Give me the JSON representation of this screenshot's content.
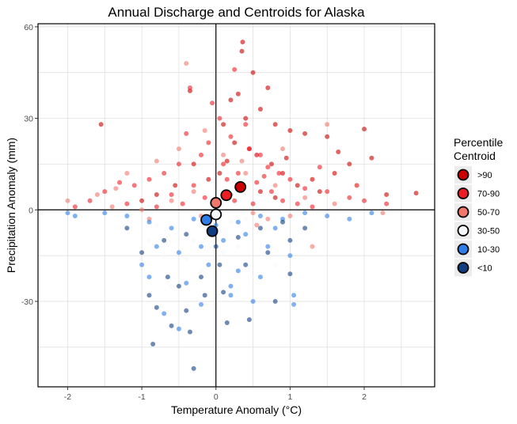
{
  "chart_data": {
    "type": "scatter",
    "title": "Annual Discharge and Centroids for Alaska",
    "xlabel": "Temperature Anomaly (°C)",
    "ylabel": "Precipitation Anomaly (mm)",
    "xlim": [
      -2.4,
      2.95
    ],
    "ylim": [
      -58,
      61
    ],
    "x_ticks": [
      -2,
      -1,
      0,
      1,
      2
    ],
    "y_ticks": [
      -30,
      0,
      30,
      60
    ],
    "grid": true,
    "reference_lines": {
      "x": 0,
      "y": 0
    },
    "legend": {
      "title": [
        "Percentile",
        "Centroid"
      ],
      "placement": "right",
      "items": [
        {
          "label": ">90",
          "color": "#cc0000"
        },
        {
          "label": "70-90",
          "color": "#ee1c25"
        },
        {
          "label": "50-70",
          "color": "#f2766c"
        },
        {
          "label": "30-50",
          "color": "#f5f8fa"
        },
        {
          "label": "10-30",
          "color": "#2e7de8"
        },
        {
          "label": "<10",
          "color": "#0f3d80"
        }
      ]
    },
    "series": [
      {
        "name": ">90",
        "color": "#cc0000",
        "centroid": [
          0.33,
          7.5
        ],
        "points": [
          [
            0.36,
            55
          ],
          [
            0.35,
            52
          ],
          [
            0.5,
            45
          ],
          [
            0.3,
            38
          ],
          [
            0.2,
            36
          ],
          [
            0.7,
            40
          ],
          [
            0.1,
            28
          ],
          [
            0.4,
            30
          ],
          [
            0.6,
            33
          ],
          [
            0.8,
            28
          ],
          [
            1.0,
            26
          ],
          [
            1.2,
            25
          ],
          [
            1.5,
            24
          ],
          [
            2.0,
            26.5
          ],
          [
            2.1,
            17
          ],
          [
            1.8,
            15
          ],
          [
            1.6,
            12
          ],
          [
            1.3,
            10
          ],
          [
            1.1,
            8
          ],
          [
            0.9,
            12
          ],
          [
            0.75,
            15
          ],
          [
            0.55,
            18
          ],
          [
            0.45,
            20
          ],
          [
            0.25,
            22
          ],
          [
            0.15,
            16
          ],
          [
            0.05,
            12
          ],
          [
            -0.1,
            10
          ],
          [
            -0.3,
            15
          ],
          [
            -0.55,
            8
          ],
          [
            -0.8,
            5
          ],
          [
            -1.0,
            3
          ],
          [
            0.6,
            6
          ],
          [
            0.8,
            4
          ],
          [
            1.4,
            6
          ],
          [
            1.9,
            8
          ],
          [
            2.3,
            5
          ],
          [
            2.7,
            5.5
          ],
          [
            -1.55,
            28
          ],
          [
            -0.35,
            39
          ],
          [
            0.95,
            17
          ],
          [
            1.65,
            19
          ]
        ]
      },
      {
        "name": "70-90",
        "color": "#ee1c25",
        "centroid": [
          0.14,
          4.8
        ],
        "points": [
          [
            -0.35,
            40
          ],
          [
            -0.4,
            25
          ],
          [
            0.05,
            30
          ],
          [
            0.2,
            24
          ],
          [
            0.4,
            28
          ],
          [
            0.45,
            20
          ],
          [
            0.6,
            18
          ],
          [
            0.7,
            14
          ],
          [
            0.85,
            12
          ],
          [
            1.0,
            10
          ],
          [
            1.2,
            7
          ],
          [
            1.5,
            6
          ],
          [
            1.8,
            4
          ],
          [
            2.0,
            3
          ],
          [
            2.3,
            2
          ],
          [
            -0.1,
            22
          ],
          [
            -0.2,
            18
          ],
          [
            -0.5,
            15
          ],
          [
            -0.7,
            12
          ],
          [
            -0.9,
            10
          ],
          [
            -1.1,
            8
          ],
          [
            -1.3,
            9
          ],
          [
            -1.5,
            6
          ],
          [
            -1.7,
            3
          ],
          [
            -1.9,
            1
          ],
          [
            -0.6,
            5
          ],
          [
            -0.3,
            8
          ],
          [
            0.1,
            15
          ],
          [
            0.3,
            12
          ],
          [
            0.55,
            9
          ],
          [
            0.75,
            6
          ],
          [
            0.9,
            3
          ],
          [
            1.1,
            2
          ],
          [
            1.3,
            1
          ],
          [
            -0.15,
            4
          ],
          [
            -0.45,
            2
          ],
          [
            0.25,
            3
          ],
          [
            0.5,
            2
          ],
          [
            -0.8,
            1
          ],
          [
            -1.2,
            2
          ],
          [
            0.15,
            10
          ],
          [
            0.65,
            11
          ],
          [
            -0.05,
            35
          ],
          [
            0.25,
            46
          ],
          [
            1.4,
            14
          ]
        ]
      },
      {
        "name": "50-70",
        "color": "#f2766c",
        "centroid": [
          0.0,
          2.3
        ],
        "points": [
          [
            -0.4,
            48
          ],
          [
            -0.15,
            26
          ],
          [
            0.1,
            18
          ],
          [
            -0.5,
            20
          ],
          [
            -0.8,
            16
          ],
          [
            -1.2,
            12
          ],
          [
            -1.6,
            5
          ],
          [
            -2.0,
            3
          ],
          [
            -1.4,
            1
          ],
          [
            0.4,
            12
          ],
          [
            0.8,
            8
          ],
          [
            1.2,
            4
          ],
          [
            1.6,
            2
          ],
          [
            1.9,
            8
          ],
          [
            2.25,
            -1
          ],
          [
            -0.3,
            6
          ],
          [
            -0.6,
            3
          ],
          [
            0.2,
            5
          ],
          [
            0.5,
            -1
          ],
          [
            0.7,
            -3
          ],
          [
            1.0,
            -2
          ],
          [
            -1.0,
            0
          ],
          [
            -0.2,
            -2
          ],
          [
            1.5,
            28
          ],
          [
            -0.9,
            -3
          ],
          [
            0.35,
            16
          ],
          [
            0.9,
            20
          ],
          [
            -1.35,
            7
          ],
          [
            0.55,
            -5
          ],
          [
            1.3,
            -12
          ]
        ]
      },
      {
        "name": "30-50",
        "color": "#f5f8fa",
        "centroid": [
          0.0,
          -1.5
        ],
        "points": [
          [
            -0.8,
            -5
          ],
          [
            -0.5,
            -8
          ],
          [
            -0.3,
            -10
          ],
          [
            0.0,
            -6
          ],
          [
            0.2,
            -4
          ],
          [
            0.4,
            -3
          ],
          [
            0.6,
            -7
          ],
          [
            0.9,
            -5
          ],
          [
            1.2,
            -3
          ],
          [
            -1.2,
            -3
          ],
          [
            -0.7,
            -15
          ],
          [
            -0.4,
            -16
          ],
          [
            0.1,
            -14
          ],
          [
            0.3,
            -12
          ],
          [
            -0.2,
            -20
          ],
          [
            0.5,
            -22
          ],
          [
            -0.6,
            -25
          ],
          [
            1.0,
            -10
          ],
          [
            0.8,
            -18
          ],
          [
            -0.9,
            -10
          ]
        ]
      },
      {
        "name": "10-30",
        "color": "#2e7de8",
        "centroid": [
          -0.13,
          -3.3
        ],
        "points": [
          [
            -1.5,
            -1
          ],
          [
            -1.2,
            -2
          ],
          [
            -0.9,
            -4
          ],
          [
            -0.6,
            -6
          ],
          [
            -0.3,
            -3
          ],
          [
            0.0,
            -5
          ],
          [
            0.3,
            -4
          ],
          [
            0.6,
            -2
          ],
          [
            0.9,
            -3
          ],
          [
            1.2,
            -1
          ],
          [
            1.5,
            -2
          ],
          [
            1.8,
            -3
          ],
          [
            2.1,
            -1
          ],
          [
            -0.8,
            -12
          ],
          [
            -0.5,
            -14
          ],
          [
            -0.2,
            -12
          ],
          [
            0.1,
            -10
          ],
          [
            0.4,
            -8
          ],
          [
            0.7,
            -12
          ],
          [
            1.0,
            -15
          ],
          [
            -0.9,
            -22
          ],
          [
            -0.4,
            -24
          ],
          [
            0.3,
            -20
          ],
          [
            0.6,
            -22
          ],
          [
            1.05,
            -28
          ],
          [
            1.05,
            -31
          ],
          [
            -0.7,
            -34
          ],
          [
            -0.5,
            -39
          ],
          [
            0.5,
            -30
          ],
          [
            -1.0,
            -18
          ],
          [
            0.8,
            -6
          ],
          [
            -0.1,
            -18
          ],
          [
            0.2,
            -28
          ],
          [
            -1.9,
            -2
          ],
          [
            -2.0,
            -1
          ],
          [
            -0.2,
            -31
          ],
          [
            0.2,
            -25
          ]
        ]
      },
      {
        "name": "<10",
        "color": "#0f3d80",
        "centroid": [
          -0.05,
          -7.0
        ],
        "points": [
          [
            -0.3,
            -52
          ],
          [
            -0.6,
            -38
          ],
          [
            -0.4,
            -33
          ],
          [
            -0.8,
            -32
          ],
          [
            -0.9,
            -28
          ],
          [
            -0.5,
            -25
          ],
          [
            -0.2,
            -22
          ],
          [
            0.1,
            -27
          ],
          [
            0.4,
            -18
          ],
          [
            0.7,
            -14
          ],
          [
            1.0,
            -10
          ],
          [
            -1.0,
            -14
          ],
          [
            -0.7,
            -10
          ],
          [
            -0.4,
            -8
          ],
          [
            0.0,
            -12
          ],
          [
            0.3,
            -9
          ],
          [
            0.6,
            -6
          ],
          [
            0.9,
            -4
          ],
          [
            1.2,
            -6
          ],
          [
            -0.15,
            -28
          ],
          [
            0.15,
            -37
          ],
          [
            0.45,
            -36
          ],
          [
            -0.65,
            -22
          ],
          [
            1.0,
            -21
          ],
          [
            -1.2,
            -6
          ],
          [
            0.8,
            -30
          ],
          [
            -0.35,
            -40
          ],
          [
            0.05,
            -18
          ],
          [
            -0.85,
            -44
          ]
        ]
      }
    ]
  }
}
